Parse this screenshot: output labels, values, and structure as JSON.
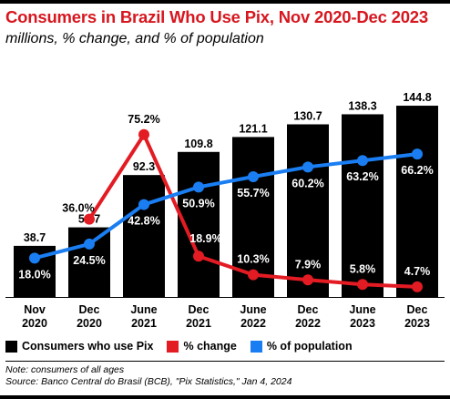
{
  "header": {
    "title": "Consumers in Brazil Who Use Pix, Nov 2020-Dec 2023",
    "subtitle": "millions, % change, and % of population"
  },
  "chart_data": {
    "type": "bar",
    "categories": [
      [
        "Nov",
        "2020"
      ],
      [
        "Dec",
        "2020"
      ],
      [
        "June",
        "2021"
      ],
      [
        "Dec",
        "2021"
      ],
      [
        "June",
        "2022"
      ],
      [
        "Dec",
        "2022"
      ],
      [
        "June",
        "2023"
      ],
      [
        "Dec",
        "2023"
      ]
    ],
    "series": [
      {
        "name": "Consumers who use Pix",
        "kind": "bar",
        "color": "#000000",
        "values": [
          38.7,
          52.7,
          92.3,
          109.8,
          121.1,
          130.7,
          138.3,
          144.8
        ],
        "labels": [
          "38.7",
          "52.7",
          "92.3",
          "109.8",
          "121.1",
          "130.7",
          "138.3",
          "144.8"
        ]
      },
      {
        "name": "% change",
        "kind": "line",
        "color": "#e31b23",
        "values": [
          null,
          36.0,
          75.2,
          18.9,
          10.3,
          7.9,
          5.8,
          4.7
        ],
        "labels": [
          "",
          "36.0%",
          "75.2%",
          "18.9%",
          "10.3%",
          "7.9%",
          "5.8%",
          "4.7%"
        ]
      },
      {
        "name": "% of population",
        "kind": "line",
        "color": "#1a7ef2",
        "values": [
          18.0,
          24.5,
          42.8,
          50.9,
          55.7,
          60.2,
          63.2,
          66.2
        ],
        "labels": [
          "18.0%",
          "24.5%",
          "42.8%",
          "50.9%",
          "55.7%",
          "60.2%",
          "63.2%",
          "66.2%"
        ]
      }
    ],
    "ylim": [
      0,
      150
    ],
    "grid": false,
    "legend_position": "bottom"
  },
  "footer": {
    "note": "Note: consumers of all ages",
    "source": "Source: Banco Central do Brasil (BCB), \"Pix Statistics,\" Jan 4, 2024"
  }
}
